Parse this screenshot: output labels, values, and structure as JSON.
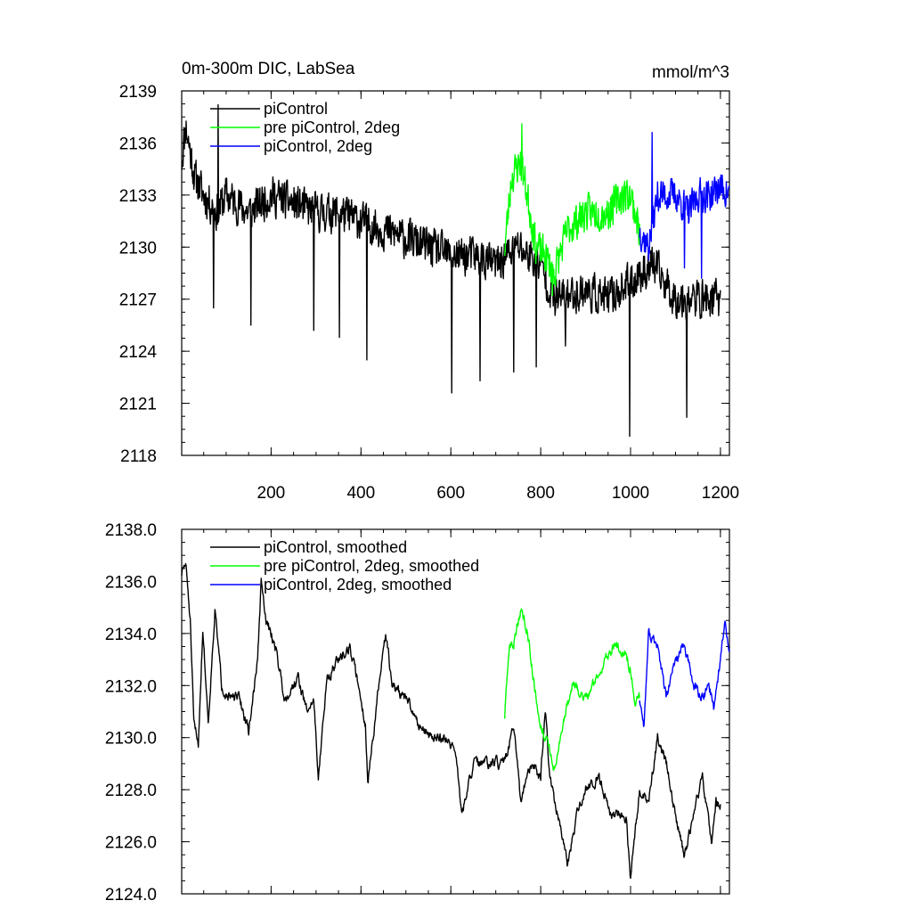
{
  "chart_data": [
    {
      "type": "line",
      "title_left": "0m-300m DIC, LabSea",
      "title_right": "mmol/m^3",
      "xlim": [
        1,
        1220
      ],
      "ylim": [
        2118,
        2139
      ],
      "xticks": [
        200,
        400,
        600,
        800,
        1000,
        1200
      ],
      "xtick_labels": [
        "200",
        "400",
        "600",
        "800",
        "1000",
        "1200"
      ],
      "yticks": [
        2118,
        2121,
        2124,
        2127,
        2130,
        2133,
        2136,
        2139
      ],
      "ytick_labels": [
        "2118",
        "2121",
        "2124",
        "2127",
        "2130",
        "2133",
        "2136",
        "2139"
      ],
      "legend_position": "top-left",
      "series": [
        {
          "name": "piControl",
          "color": "#000000",
          "x_start": 1,
          "x_end": 1200,
          "anchors": [
            [
              1,
              2135
            ],
            [
              10,
              2137
            ],
            [
              30,
              2134
            ],
            [
              50,
              2133
            ],
            [
              80,
              2132
            ],
            [
              100,
              2133
            ],
            [
              150,
              2132
            ],
            [
              200,
              2133
            ],
            [
              250,
              2132.5
            ],
            [
              300,
              2132
            ],
            [
              350,
              2132
            ],
            [
              400,
              2131.5
            ],
            [
              450,
              2131
            ],
            [
              500,
              2130.5
            ],
            [
              550,
              2130
            ],
            [
              600,
              2129.5
            ],
            [
              650,
              2129.5
            ],
            [
              700,
              2129
            ],
            [
              750,
              2130
            ],
            [
              800,
              2129
            ],
            [
              830,
              2127
            ],
            [
              900,
              2127.5
            ],
            [
              950,
              2127
            ],
            [
              1000,
              2128
            ],
            [
              1050,
              2129
            ],
            [
              1100,
              2127
            ],
            [
              1150,
              2127
            ],
            [
              1200,
              2127
            ]
          ],
          "spikes": [
            [
              72,
              2126.5
            ],
            [
              82,
              2138.2
            ],
            [
              155,
              2125.5
            ],
            [
              295,
              2125.2
            ],
            [
              352,
              2124.8
            ],
            [
              413,
              2123.5
            ],
            [
              602,
              2121.6
            ],
            [
              665,
              2122.3
            ],
            [
              740,
              2122.8
            ],
            [
              790,
              2123.1
            ],
            [
              855,
              2124.3
            ],
            [
              998,
              2119.1
            ],
            [
              1125,
              2120.2
            ]
          ],
          "noise_amp": 1.4,
          "seed": 11
        },
        {
          "name": "pre piControl, 2deg",
          "color": "#00ff00",
          "x_start": 720,
          "x_end": 1020,
          "anchors": [
            [
              720,
              2130
            ],
            [
              735,
              2134
            ],
            [
              755,
              2135
            ],
            [
              770,
              2133
            ],
            [
              790,
              2130
            ],
            [
              810,
              2129.5
            ],
            [
              830,
              2128.5
            ],
            [
              860,
              2131
            ],
            [
              900,
              2132
            ],
            [
              950,
              2132
            ],
            [
              980,
              2133
            ],
            [
              1000,
              2133
            ],
            [
              1020,
              2131
            ]
          ],
          "spikes": [
            [
              758,
              2137.1
            ],
            [
              826,
              2127.2
            ]
          ],
          "noise_amp": 1.3,
          "seed": 23
        },
        {
          "name": "piControl, 2deg",
          "color": "#0000ff",
          "x_start": 1020,
          "x_end": 1220,
          "anchors": [
            [
              1020,
              2131
            ],
            [
              1040,
              2130
            ],
            [
              1060,
              2133
            ],
            [
              1100,
              2133
            ],
            [
              1130,
              2132
            ],
            [
              1150,
              2133
            ],
            [
              1180,
              2133
            ],
            [
              1200,
              2133.5
            ],
            [
              1220,
              2133
            ]
          ],
          "spikes": [
            [
              1048,
              2136.6
            ],
            [
              1120,
              2128.8
            ],
            [
              1158,
              2128.2
            ]
          ],
          "noise_amp": 1.2,
          "seed": 37
        }
      ]
    },
    {
      "type": "line",
      "xlim": [
        1,
        1220
      ],
      "ylim": [
        2124.0,
        2138.0
      ],
      "xticks": [
        200,
        400,
        600,
        800,
        1000,
        1200
      ],
      "yticks": [
        2124,
        2126,
        2128,
        2130,
        2132,
        2134,
        2136,
        2138
      ],
      "ytick_labels": [
        "2124.0",
        "2126.0",
        "2128.0",
        "2130.0",
        "2132.0",
        "2134.0",
        "2136.0",
        "2138.0"
      ],
      "legend_position": "top-left",
      "series": [
        {
          "name": "piControl, smoothed",
          "color": "#000000",
          "x_start": 1,
          "x_end": 1200,
          "anchors": [
            [
              1,
              2136.3
            ],
            [
              10,
              2136.7
            ],
            [
              20,
              2134.5
            ],
            [
              28,
              2130.5
            ],
            [
              38,
              2129.8
            ],
            [
              48,
              2134.2
            ],
            [
              60,
              2130.6
            ],
            [
              75,
              2134.9
            ],
            [
              90,
              2132
            ],
            [
              110,
              2131.5
            ],
            [
              130,
              2131.5
            ],
            [
              150,
              2130.2
            ],
            [
              170,
              2133
            ],
            [
              178,
              2136
            ],
            [
              188,
              2134.5
            ],
            [
              210,
              2133.5
            ],
            [
              230,
              2131.5
            ],
            [
              260,
              2132.3
            ],
            [
              280,
              2131
            ],
            [
              295,
              2131.5
            ],
            [
              305,
              2128.5
            ],
            [
              325,
              2132.3
            ],
            [
              350,
              2133
            ],
            [
              375,
              2133.5
            ],
            [
              395,
              2132
            ],
            [
              410,
              2130.5
            ],
            [
              415,
              2128.2
            ],
            [
              440,
              2132
            ],
            [
              455,
              2134
            ],
            [
              470,
              2132
            ],
            [
              500,
              2131.5
            ],
            [
              530,
              2130.5
            ],
            [
              560,
              2130
            ],
            [
              590,
              2130
            ],
            [
              610,
              2129.5
            ],
            [
              625,
              2127
            ],
            [
              650,
              2129
            ],
            [
              680,
              2129
            ],
            [
              720,
              2129
            ],
            [
              740,
              2130.5
            ],
            [
              755,
              2127.5
            ],
            [
              780,
              2129
            ],
            [
              800,
              2128.5
            ],
            [
              810,
              2131.2
            ],
            [
              820,
              2128.5
            ],
            [
              840,
              2126.8
            ],
            [
              860,
              2125
            ],
            [
              880,
              2127
            ],
            [
              900,
              2128
            ],
            [
              930,
              2128.5
            ],
            [
              960,
              2127
            ],
            [
              990,
              2127
            ],
            [
              1000,
              2124.5
            ],
            [
              1020,
              2128
            ],
            [
              1040,
              2127.5
            ],
            [
              1060,
              2130
            ],
            [
              1080,
              2129
            ],
            [
              1100,
              2127
            ],
            [
              1120,
              2125.5
            ],
            [
              1140,
              2127
            ],
            [
              1160,
              2128.5
            ],
            [
              1180,
              2126
            ],
            [
              1190,
              2127.5
            ],
            [
              1200,
              2127.4
            ]
          ],
          "noise_amp": 0.45,
          "seed": 51
        },
        {
          "name": "pre piControl, 2deg, smoothed",
          "color": "#00ff00",
          "x_start": 720,
          "x_end": 1020,
          "anchors": [
            [
              720,
              2130.8
            ],
            [
              730,
              2133.5
            ],
            [
              740,
              2133.6
            ],
            [
              755,
              2134.9
            ],
            [
              770,
              2134.2
            ],
            [
              790,
              2131.5
            ],
            [
              800,
              2130.5
            ],
            [
              815,
              2129.8
            ],
            [
              830,
              2128.8
            ],
            [
              850,
              2130.5
            ],
            [
              870,
              2132
            ],
            [
              900,
              2131.5
            ],
            [
              930,
              2132.5
            ],
            [
              960,
              2133.5
            ],
            [
              990,
              2133.3
            ],
            [
              1000,
              2132.5
            ],
            [
              1010,
              2131.5
            ],
            [
              1020,
              2131.5
            ]
          ],
          "noise_amp": 0.45,
          "seed": 63
        },
        {
          "name": "piControl, 2deg, smoothed",
          "color": "#0000ff",
          "x_start": 1020,
          "x_end": 1220,
          "anchors": [
            [
              1020,
              2131.5
            ],
            [
              1030,
              2130.5
            ],
            [
              1040,
              2134
            ],
            [
              1060,
              2133.5
            ],
            [
              1080,
              2131.5
            ],
            [
              1100,
              2133
            ],
            [
              1120,
              2133.5
            ],
            [
              1140,
              2132
            ],
            [
              1160,
              2131.5
            ],
            [
              1175,
              2132
            ],
            [
              1185,
              2131.2
            ],
            [
              1200,
              2133
            ],
            [
              1210,
              2134.4
            ],
            [
              1220,
              2133.5
            ]
          ],
          "noise_amp": 0.45,
          "seed": 77
        }
      ]
    }
  ]
}
